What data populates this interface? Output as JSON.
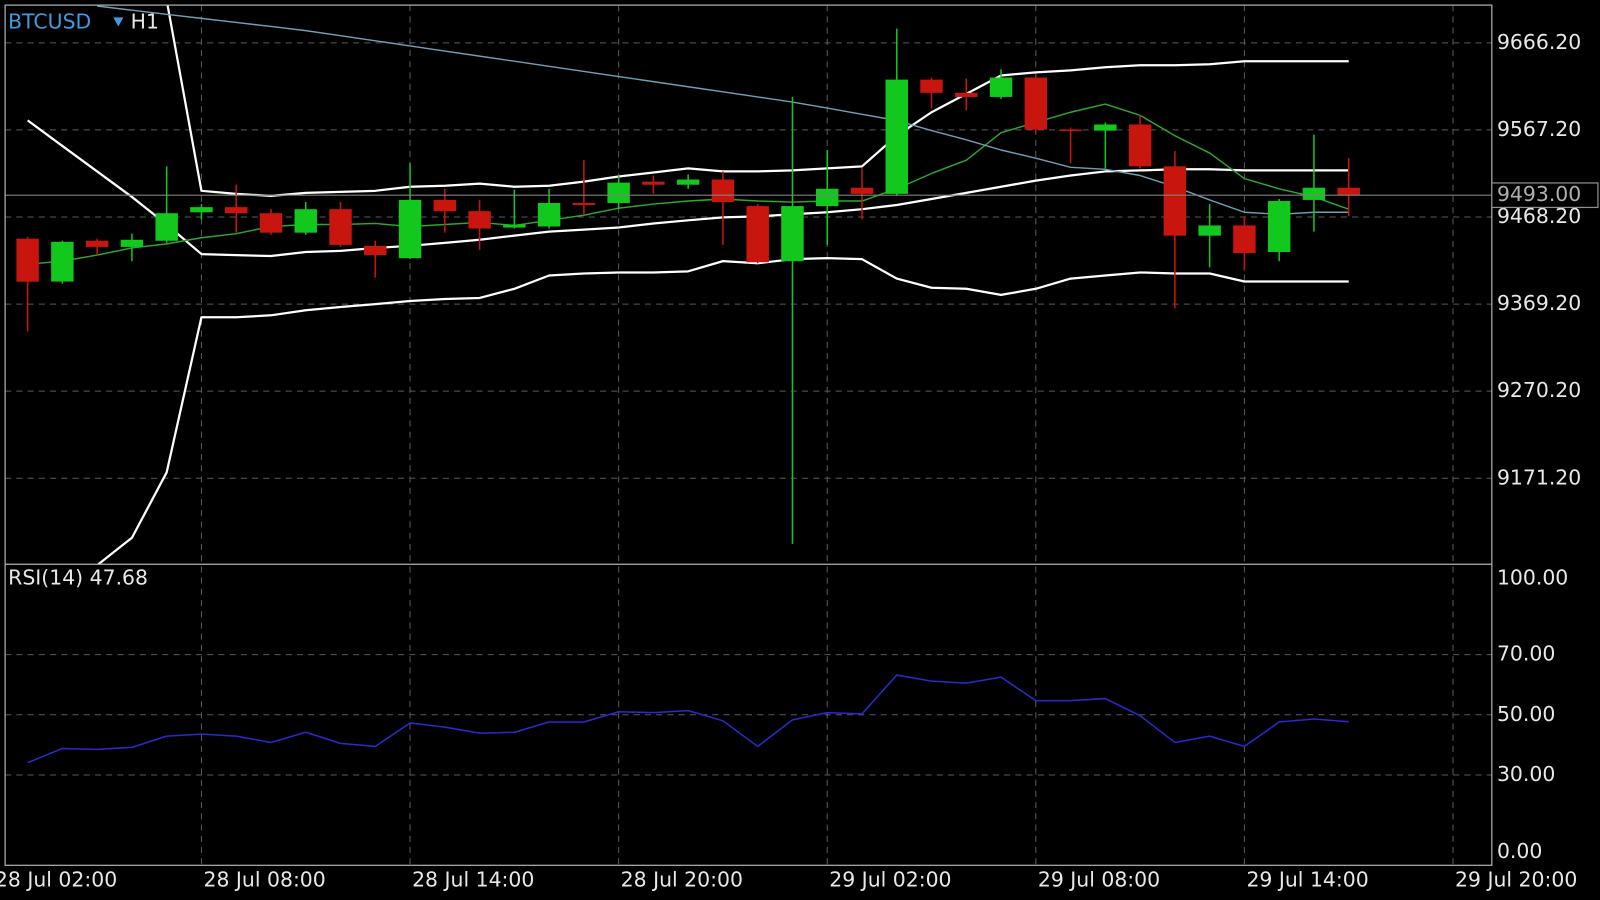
{
  "chart_data": [
    {
      "type": "candlestick",
      "symbol": "BTCUSD",
      "timeframe": "H1",
      "x": [
        "28 Jul 03:00",
        "28 Jul 04:00",
        "28 Jul 05:00",
        "28 Jul 06:00",
        "28 Jul 07:00",
        "28 Jul 08:00",
        "28 Jul 09:00",
        "28 Jul 10:00",
        "28 Jul 11:00",
        "28 Jul 12:00",
        "28 Jul 13:00",
        "28 Jul 14:00",
        "28 Jul 15:00",
        "28 Jul 16:00",
        "28 Jul 17:00",
        "28 Jul 18:00",
        "28 Jul 19:00",
        "28 Jul 20:00",
        "28 Jul 21:00",
        "28 Jul 22:00",
        "28 Jul 23:00",
        "29 Jul 00:00",
        "29 Jul 01:00",
        "29 Jul 02:00",
        "29 Jul 03:00",
        "29 Jul 04:00",
        "29 Jul 05:00",
        "29 Jul 06:00",
        "29 Jul 07:00",
        "29 Jul 08:00",
        "29 Jul 09:00",
        "29 Jul 10:00",
        "29 Jul 11:00",
        "29 Jul 12:00",
        "29 Jul 13:00",
        "29 Jul 14:00",
        "29 Jul 15:00",
        "29 Jul 16:00",
        "29 Jul 17:00"
      ],
      "open": [
        9443.5,
        9394.8,
        9441.2,
        9434.2,
        9441.2,
        9473.6,
        9479.4,
        9472.5,
        9450.4,
        9477.1,
        9435.4,
        9421.4,
        9487.6,
        9474.8,
        9456.2,
        9457.4,
        9484.1,
        9484.1,
        9508.4,
        9504.9,
        9510.8,
        9480.6,
        9418.0,
        9480.6,
        9501.5,
        9494.5,
        9624.4,
        9609.4,
        9604.7,
        9626.8,
        9567.6,
        9566.4,
        9573.4,
        9525.8,
        9447.0,
        9458.6,
        9428.4,
        9487.6,
        9501.5
      ],
      "high": [
        9445.8,
        9441.2,
        9443.5,
        9449.3,
        9525.8,
        9482.9,
        9505.0,
        9477.1,
        9485.2,
        9485.2,
        9441.2,
        9529.3,
        9500.3,
        9487.6,
        9499.2,
        9500.3,
        9532.8,
        9515.4,
        9515.4,
        9516.6,
        9520.0,
        9482.9,
        9604.7,
        9544.4,
        9523.5,
        9682.4,
        9626.8,
        9625.6,
        9636.0,
        9630.2,
        9569.9,
        9575.7,
        9583.8,
        9543.2,
        9482.9,
        9469.0,
        9488.7,
        9561.8,
        9535.1
      ],
      "low": [
        9337.9,
        9392.4,
        9424.9,
        9418.0,
        9438.8,
        9465.5,
        9450.4,
        9448.1,
        9448.1,
        9434.2,
        9399.4,
        9420.3,
        9450.4,
        9430.7,
        9455.1,
        9455.1,
        9471.3,
        9477.1,
        9494.5,
        9500.3,
        9436.5,
        9415.6,
        9096.6,
        9436.5,
        9465.5,
        9492.2,
        9591.9,
        9589.6,
        9602.4,
        9564.1,
        9529.3,
        9523.5,
        9523.5,
        9364.6,
        9411.0,
        9407.5,
        9418.0,
        9451.6,
        9469.0
      ],
      "close": [
        9394.7,
        9440.0,
        9434.2,
        9442.3,
        9472.5,
        9479.4,
        9472.5,
        9450.4,
        9477.1,
        9436.5,
        9424.9,
        9487.6,
        9474.8,
        9455.1,
        9459.7,
        9484.1,
        9481.8,
        9507.3,
        9504.9,
        9510.8,
        9485.2,
        9416.8,
        9480.6,
        9500.3,
        9494.5,
        9624.4,
        9609.4,
        9604.7,
        9626.8,
        9567.6,
        9566.4,
        9573.4,
        9525.8,
        9447.0,
        9458.6,
        9427.2,
        9486.4,
        9501.5,
        9493.0
      ],
      "up_color": "#12c81c",
      "down_color": "#c8160e",
      "overlays": [
        {
          "color": "#ffffff",
          "values": [
            null,
            null,
            null,
            null,
            9714.9,
            9498.0,
            9494.5,
            9492.2,
            9495.7,
            9496.8,
            9498.0,
            9502.6,
            9503.8,
            9506.1,
            9502.6,
            9503.8,
            9508.4,
            9514.2,
            9518.9,
            9523.5,
            9520.0,
            9520.0,
            9521.2,
            9523.5,
            9525.8,
            9560.6,
            9587.3,
            9608.2,
            9629.1,
            9632.6,
            9634.9,
            9638.4,
            9640.7,
            9640.7,
            9641.8,
            9645.3,
            9645.3,
            9645.3,
            9645.3
          ]
        },
        {
          "color": "#ffffff",
          "values": [
            9578.0,
            9549.0,
            9520.0,
            9491.0,
            9459.7,
            9426.1,
            9424.9,
            9423.8,
            9428.4,
            9429.6,
            9433.0,
            9435.4,
            9438.8,
            9442.3,
            9447.0,
            9451.6,
            9453.9,
            9456.2,
            9460.9,
            9464.4,
            9467.8,
            9469.0,
            9471.3,
            9473.6,
            9477.1,
            9481.8,
            9488.7,
            9495.7,
            9502.6,
            9509.6,
            9515.4,
            9520.0,
            9521.2,
            9522.4,
            9522.4,
            9521.2,
            9521.2,
            9521.2,
            9521.2
          ]
        },
        {
          "color": "#ffffff",
          "values": [
            null,
            null,
            9072.3,
            9103.6,
            9177.8,
            9354.2,
            9354.2,
            9356.5,
            9362.3,
            9365.8,
            9369.2,
            9372.7,
            9375.0,
            9376.2,
            9386.6,
            9401.7,
            9404.0,
            9405.2,
            9405.2,
            9406.4,
            9418.0,
            9415.6,
            9420.3,
            9421.4,
            9420.3,
            9398.2,
            9387.8,
            9386.6,
            9379.7,
            9386.6,
            9398.2,
            9401.7,
            9405.2,
            9404.0,
            9404.0,
            9394.8,
            9394.8,
            9394.8,
            9394.8
          ]
        },
        {
          "color": "#2fa82f",
          "values": [
            9414.5,
            9418.0,
            9424.9,
            9433.0,
            9437.7,
            9444.6,
            9449.3,
            9457.4,
            9459.7,
            9459.7,
            9460.9,
            9457.4,
            9459.7,
            9462.0,
            9458.6,
            9464.4,
            9470.2,
            9478.3,
            9482.9,
            9486.4,
            9488.7,
            9486.4,
            9485.2,
            9486.4,
            9486.4,
            9500.3,
            9517.7,
            9532.8,
            9564.1,
            9575.7,
            9587.3,
            9596.6,
            9583.8,
            9560.6,
            9540.9,
            9511.9,
            9500.3,
            9491.0,
            9477.1
          ]
        },
        {
          "color": "#6f9fb5",
          "values": [
            null,
            null,
            9708.0,
            9703.3,
            9698.7,
            9694.0,
            9689.4,
            9684.8,
            9680.1,
            9674.3,
            9668.5,
            9662.7,
            9656.9,
            9651.1,
            9645.3,
            9639.5,
            9633.7,
            9627.9,
            9622.1,
            9616.3,
            9610.5,
            9604.7,
            9598.9,
            9592.0,
            9585.0,
            9578.0,
            9566.4,
            9556.0,
            9544.4,
            9535.1,
            9524.7,
            9522.4,
            9515.4,
            9502.6,
            9487.6,
            9473.6,
            9471.3,
            9473.6,
            9473.6
          ]
        }
      ],
      "last_price": {
        "value": 9493.0,
        "label": "9493.00"
      },
      "ylim": [
        9073.4,
        9709.1
      ],
      "yticks": [
        {
          "value": 9171.2,
          "label": "9171.20"
        },
        {
          "value": 9270.2,
          "label": "9270.20"
        },
        {
          "value": 9369.2,
          "label": "9369.20"
        },
        {
          "value": 9468.2,
          "label": "9468.20"
        },
        {
          "value": 9567.2,
          "label": "9567.20"
        },
        {
          "value": 9666.2,
          "label": "9666.20"
        }
      ],
      "xticks": [
        "28 Jul 02:00",
        "28 Jul 08:00",
        "28 Jul 14:00",
        "28 Jul 20:00",
        "29 Jul 02:00",
        "29 Jul 08:00",
        "29 Jul 14:00",
        "29 Jul 20:00"
      ],
      "grid": true
    },
    {
      "type": "line",
      "title": "RSI(14)",
      "color": "#2a2ad2",
      "values": [
        34.1,
        38.8,
        38.5,
        39.2,
        42.9,
        43.6,
        42.9,
        40.8,
        44.2,
        40.5,
        39.5,
        47.3,
        45.9,
        43.9,
        44.2,
        47.6,
        47.6,
        51.0,
        50.7,
        51.4,
        48.0,
        39.5,
        48.3,
        50.7,
        50.3,
        63.2,
        61.2,
        60.5,
        62.5,
        54.7,
        54.7,
        55.4,
        49.7,
        40.8,
        42.9,
        39.5,
        47.6,
        48.6,
        47.68
      ],
      "ylim": [
        0,
        100
      ],
      "yticks": [
        {
          "value": 0,
          "label": "0.00"
        },
        {
          "value": 30,
          "label": "30.00"
        },
        {
          "value": 50,
          "label": "50.00"
        },
        {
          "value": 70,
          "label": "70.00"
        },
        {
          "value": 100,
          "label": "100.00"
        }
      ],
      "grid": true
    }
  ]
}
